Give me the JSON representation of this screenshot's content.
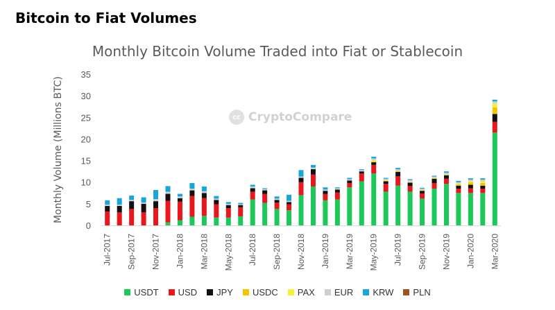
{
  "page": {
    "heading": "Bitcoin to Fiat Volumes"
  },
  "watermark": {
    "logo_text": "cc",
    "text": "CryptoCompare"
  },
  "colors": {
    "USDT": "#1dc85b",
    "USD": "#e8161d",
    "JPY": "#111111",
    "USDC": "#f5c400",
    "PAX": "#f7f03a",
    "EUR": "#cfcfcf",
    "KRW": "#15a7dc",
    "PLN": "#a0521d"
  },
  "chart_data": {
    "type": "bar",
    "stacked": true,
    "title": "Monthly Bitcoin Volume Traded into Fiat or Stablecoin",
    "xlabel": "",
    "ylabel": "Monthly Volume (Millions BTC)",
    "ylim": [
      0,
      35
    ],
    "yticks": [
      0,
      5,
      10,
      15,
      20,
      25,
      30,
      35
    ],
    "grid": false,
    "legend_position": "bottom",
    "categories": [
      "Jul-2017",
      "Aug-2017",
      "Sep-2017",
      "Oct-2017",
      "Nov-2017",
      "Dec-2017",
      "Jan-2018",
      "Feb-2018",
      "Mar-2018",
      "Apr-2018",
      "May-2018",
      "Jun-2018",
      "Jul-2018",
      "Aug-2018",
      "Sep-2018",
      "Oct-2018",
      "Nov-2018",
      "Dec-2018",
      "Jan-2019",
      "Feb-2019",
      "Mar-2019",
      "Apr-2019",
      "May-2019",
      "Jun-2019",
      "Jul-2019",
      "Aug-2019",
      "Sep-2019",
      "Oct-2019",
      "Nov-2019",
      "Dec-2019",
      "Jan-2020",
      "Feb-2020",
      "Mar-2020"
    ],
    "tick_labels": [
      "Jul-2017",
      "",
      "Sep-2017",
      "",
      "Nov-2017",
      "",
      "Jan-2018",
      "",
      "Mar-2018",
      "",
      "May-2018",
      "",
      "Jul-2018",
      "",
      "Sep-2018",
      "",
      "Nov-2018",
      "",
      "Jan-2019",
      "",
      "Mar-2019",
      "",
      "May-2019",
      "",
      "Jul-2019",
      "",
      "Sep-2019",
      "",
      "Nov-2019",
      "",
      "Jan-2020",
      "",
      "Mar-2020"
    ],
    "series": [
      {
        "name": "USDT",
        "values": [
          0,
          0,
          0,
          0,
          0,
          0.7,
          1.2,
          2.0,
          2.2,
          1.8,
          1.8,
          2.1,
          6.0,
          5.2,
          3.8,
          3.5,
          7.0,
          9.0,
          5.8,
          6.0,
          8.8,
          10.2,
          12.0,
          7.8,
          9.2,
          7.8,
          6.2,
          8.5,
          9.6,
          7.5,
          7.5,
          7.5,
          21.5
        ]
      },
      {
        "name": "USD",
        "values": [
          3.2,
          3.0,
          3.8,
          3.0,
          4.0,
          5.0,
          4.3,
          4.8,
          4.1,
          3.1,
          2.2,
          2.1,
          1.8,
          2.1,
          1.5,
          1.4,
          3.0,
          2.8,
          1.5,
          1.6,
          1.0,
          1.8,
          2.0,
          1.8,
          2.2,
          1.3,
          1.2,
          1.3,
          1.2,
          1.0,
          1.1,
          1.0,
          2.5
        ]
      },
      {
        "name": "JPY",
        "values": [
          1.3,
          1.5,
          1.8,
          2.0,
          1.6,
          1.6,
          0.8,
          1.3,
          1.2,
          1.0,
          0.7,
          0.5,
          0.8,
          0.8,
          0.6,
          0.5,
          1.0,
          1.2,
          0.7,
          0.7,
          0.6,
          0.5,
          0.6,
          0.6,
          1.0,
          0.8,
          0.6,
          1.0,
          0.8,
          0.7,
          0.8,
          0.7,
          1.8
        ]
      },
      {
        "name": "USDC",
        "values": [
          0,
          0,
          0,
          0,
          0,
          0,
          0,
          0,
          0,
          0,
          0,
          0,
          0,
          0,
          0,
          0,
          0,
          0,
          0,
          0,
          0,
          0,
          0.2,
          0.1,
          0.1,
          0.1,
          0.1,
          0.1,
          0.1,
          0.3,
          0.6,
          0.6,
          1.5
        ]
      },
      {
        "name": "PAX",
        "values": [
          0,
          0,
          0,
          0,
          0,
          0,
          0,
          0,
          0,
          0,
          0,
          0,
          0,
          0,
          0,
          0,
          0,
          0,
          0,
          0,
          0,
          0,
          0.2,
          0.1,
          0.1,
          0.1,
          0.1,
          0.1,
          0.1,
          0.2,
          0.2,
          0.4,
          0.9
        ]
      },
      {
        "name": "EUR",
        "values": [
          0.3,
          0.3,
          0.3,
          0.3,
          0.5,
          0.5,
          0.4,
          0.4,
          0.4,
          0.3,
          0.3,
          0.2,
          0.4,
          0.3,
          0.3,
          0.3,
          0.3,
          0.4,
          0.3,
          0.3,
          0.3,
          0.3,
          0.5,
          0.4,
          0.4,
          0.4,
          0.3,
          0.3,
          0.4,
          0.3,
          0.4,
          0.4,
          0.5
        ]
      },
      {
        "name": "KRW",
        "values": [
          1.0,
          1.5,
          1.0,
          1.2,
          2.1,
          1.3,
          0.6,
          1.3,
          1.1,
          0.6,
          0.4,
          0.3,
          0.4,
          0.2,
          0.5,
          1.4,
          1.5,
          0.6,
          0.5,
          0.2,
          0.3,
          0.2,
          0.4,
          0.2,
          0.3,
          0.2,
          0.2,
          0.2,
          0.3,
          0.3,
          0.3,
          0.3,
          0.4
        ]
      },
      {
        "name": "PLN",
        "values": [
          0,
          0,
          0,
          0,
          0,
          0,
          0,
          0,
          0,
          0,
          0,
          0,
          0,
          0,
          0,
          0,
          0,
          0,
          0,
          0,
          0,
          0,
          0,
          0,
          0,
          0,
          0,
          0,
          0,
          0,
          0,
          0,
          0
        ]
      }
    ]
  }
}
